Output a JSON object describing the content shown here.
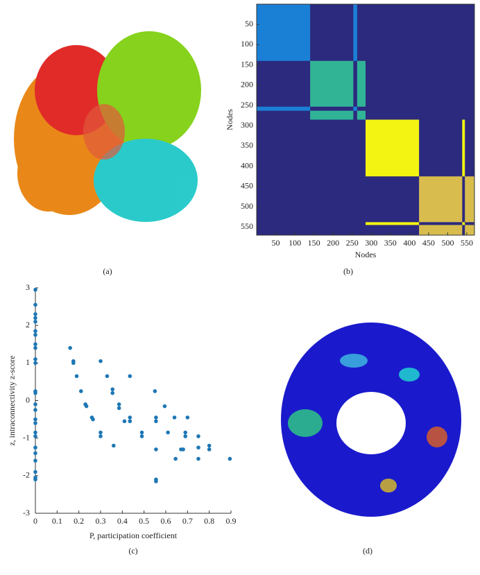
{
  "chart_data": [
    {
      "type": "module-matrix",
      "xlabel": "Nodes",
      "ylabel": "Nodes",
      "caption": "(b)",
      "background": "#2c2a7e",
      "xlim": [
        0,
        570
      ],
      "ylim": [
        570,
        0
      ],
      "xticks": [
        50,
        100,
        150,
        200,
        250,
        300,
        350,
        400,
        450,
        500,
        550
      ],
      "yticks": [
        50,
        100,
        150,
        200,
        250,
        300,
        350,
        400,
        450,
        500,
        550
      ],
      "groups": [
        {
          "color": "#1a80d6",
          "ranges": [
            [
              0,
              140
            ],
            [
              253,
              263
            ]
          ]
        },
        {
          "color": "#31b496",
          "ranges": [
            [
              140,
              253
            ],
            [
              263,
              285
            ]
          ]
        },
        {
          "color": "#f4f412",
          "ranges": [
            [
              285,
              425
            ],
            [
              538,
              545
            ]
          ]
        },
        {
          "color": "#d8bd4e",
          "ranges": [
            [
              425,
              538
            ],
            [
              545,
              570
            ]
          ]
        }
      ]
    },
    {
      "type": "scatter",
      "xlabel": "P, participation coefficient",
      "ylabel": "z, intraconnectivity z-score",
      "caption": "(c)",
      "color": "#1f77b4",
      "xlim": [
        0,
        0.9
      ],
      "ylim": [
        -3,
        3
      ],
      "xticks": [
        0,
        0.1,
        0.2,
        0.3,
        0.4,
        0.5,
        0.6,
        0.7,
        0.8,
        0.9
      ],
      "yticks": [
        -3,
        -2,
        -1,
        0,
        1,
        2,
        3
      ],
      "x": [
        0,
        0,
        0,
        0,
        0,
        0,
        0,
        0,
        0,
        0,
        0,
        0,
        0,
        0,
        0,
        0,
        0,
        0,
        0,
        0,
        0,
        0,
        0,
        0,
        0,
        0.16,
        0.175,
        0.175,
        0.19,
        0.21,
        0.23,
        0.235,
        0.26,
        0.265,
        0.3,
        0.3,
        0.3,
        0.33,
        0.355,
        0.355,
        0.36,
        0.385,
        0.385,
        0.41,
        0.435,
        0.435,
        0.435,
        0.49,
        0.49,
        0.55,
        0.555,
        0.555,
        0.555,
        0.555,
        0.555,
        0.595,
        0.61,
        0.64,
        0.645,
        0.67,
        0.68,
        0.69,
        0.69,
        0.7,
        0.75,
        0.75,
        0.75,
        0.8,
        0.8,
        0.895
      ],
      "values": [
        2.95,
        2.55,
        2.3,
        2.2,
        2.1,
        1.85,
        1.75,
        1.5,
        1.4,
        1.1,
        1.0,
        0.25,
        0.2,
        -0.1,
        -0.25,
        -0.5,
        -0.6,
        -0.85,
        -0.95,
        -1.25,
        -1.4,
        -1.6,
        -1.9,
        -2.05,
        -2.1,
        1.4,
        1.05,
        1.0,
        0.65,
        0.25,
        -0.1,
        -0.15,
        -0.45,
        -0.5,
        1.05,
        -0.85,
        -0.95,
        0.65,
        0.3,
        0.2,
        -1.2,
        -0.1,
        -0.2,
        -0.55,
        0.65,
        -0.45,
        -0.55,
        -0.85,
        -0.95,
        0.25,
        -0.45,
        -0.55,
        -1.3,
        -2.1,
        -2.15,
        -0.15,
        -0.85,
        -0.45,
        -1.55,
        -1.3,
        -1.3,
        -0.85,
        -0.95,
        -0.45,
        -0.95,
        -1.25,
        -1.55,
        -1.2,
        -1.3,
        -1.55
      ]
    }
  ],
  "images": [
    {
      "caption": "(a)"
    },
    {
      "caption": "(d)"
    }
  ]
}
